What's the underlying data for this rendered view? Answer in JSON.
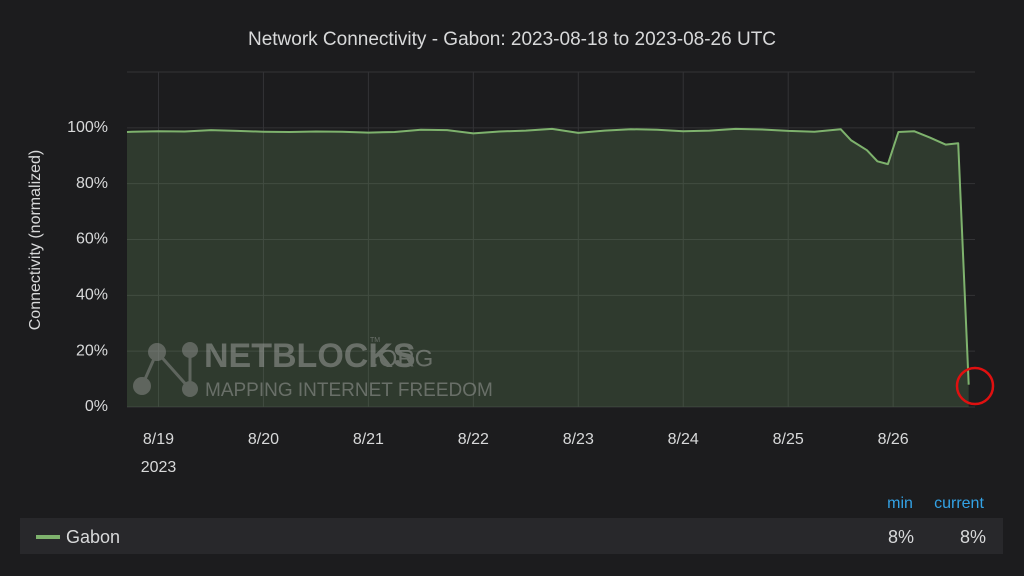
{
  "chart_data": {
    "type": "line",
    "title": "Network Connectivity - Gabon: 2023-08-18 to 2023-08-26 UTC",
    "y_label": "Connectivity (normalized)",
    "x_sublabel": "2023",
    "xlim": [
      18.7,
      26.78
    ],
    "xticks": [
      {
        "value": 19,
        "label": "8/19"
      },
      {
        "value": 20,
        "label": "8/20"
      },
      {
        "value": 21,
        "label": "8/21"
      },
      {
        "value": 22,
        "label": "8/22"
      },
      {
        "value": 23,
        "label": "8/23"
      },
      {
        "value": 24,
        "label": "8/24"
      },
      {
        "value": 25,
        "label": "8/25"
      },
      {
        "value": 26,
        "label": "8/26"
      }
    ],
    "ylim": [
      0,
      120
    ],
    "yticks": [
      {
        "value": 0,
        "label": "0%"
      },
      {
        "value": 20,
        "label": "20%"
      },
      {
        "value": 40,
        "label": "40%"
      },
      {
        "value": 60,
        "label": "60%"
      },
      {
        "value": 80,
        "label": "80%"
      },
      {
        "value": 100,
        "label": "100%"
      }
    ],
    "grid": true,
    "x": [
      18.7,
      18.75,
      19.0,
      19.25,
      19.5,
      19.75,
      20.0,
      20.25,
      20.5,
      20.75,
      21.0,
      21.25,
      21.5,
      21.75,
      22.0,
      22.25,
      22.5,
      22.75,
      23.0,
      23.25,
      23.5,
      23.75,
      24.0,
      24.25,
      24.5,
      24.75,
      25.0,
      25.25,
      25.5,
      25.6,
      25.75,
      25.85,
      25.95,
      26.05,
      26.2,
      26.35,
      26.5,
      26.62,
      26.72
    ],
    "series": [
      {
        "name": "Gabon",
        "color": "#7eb26d",
        "values": [
          98.5,
          98.6,
          98.8,
          98.7,
          99.2,
          98.9,
          98.6,
          98.5,
          98.7,
          98.6,
          98.3,
          98.5,
          99.3,
          99.2,
          98.0,
          98.7,
          99.0,
          99.6,
          98.2,
          99.0,
          99.5,
          99.3,
          98.8,
          99.0,
          99.6,
          99.4,
          98.9,
          98.6,
          99.5,
          95.5,
          92,
          88,
          87,
          98.5,
          98.8,
          96.5,
          94,
          94.5,
          8
        ]
      }
    ],
    "legend_headers": [
      "min",
      "current"
    ],
    "legend_stats": [
      "8%",
      "8%"
    ],
    "watermark": {
      "name": "NETBLOCKS",
      "suffix": ".ORG",
      "tm": "TM",
      "tagline": "MAPPING INTERNET FREEDOM"
    }
  }
}
